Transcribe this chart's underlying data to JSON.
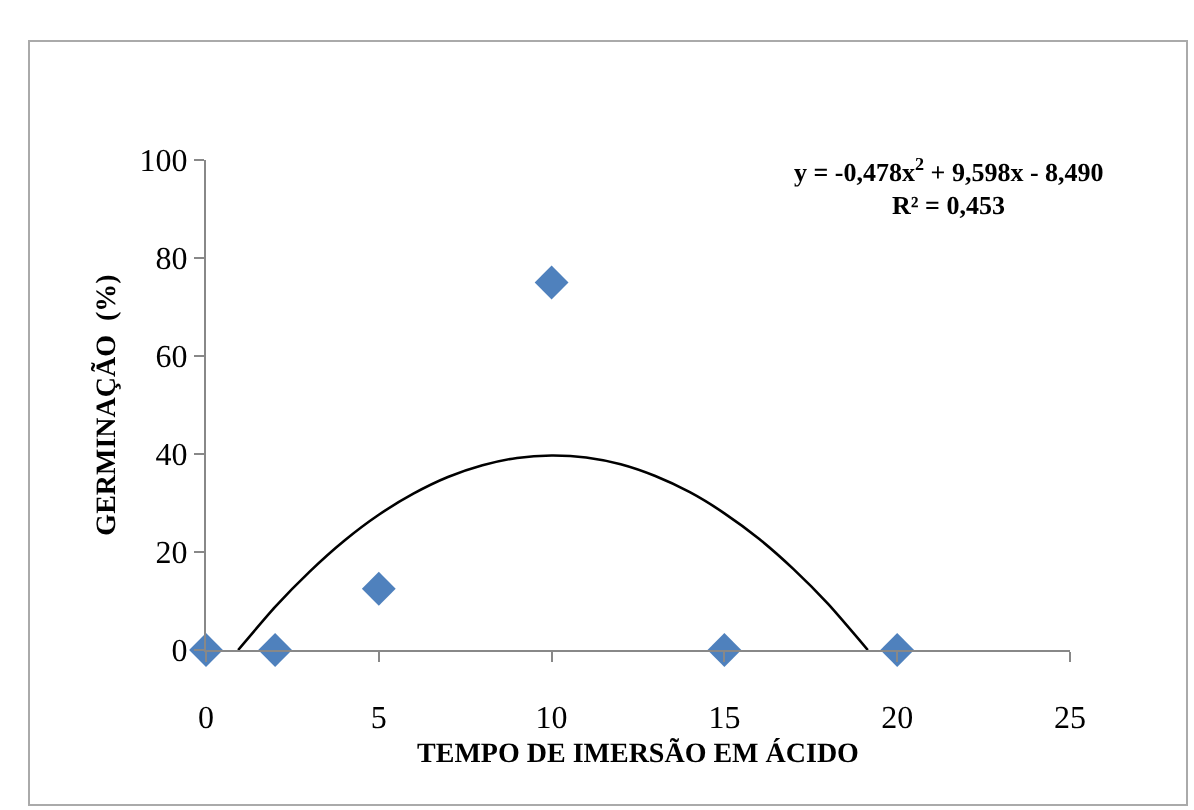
{
  "chart_data": {
    "type": "scatter",
    "xlabel": "TEMPO DE IMERSÃO EM ÁCIDO",
    "ylabel": "GERMINAÇÃO  (%)",
    "x": [
      0,
      2,
      5,
      10,
      15,
      20
    ],
    "values": [
      0,
      0,
      12.5,
      75,
      0,
      0
    ],
    "color": "#4f81bd",
    "marker": "diamond",
    "series": [
      {
        "type": "line",
        "color": "#000000",
        "line_style": "solid",
        "marker": "none",
        "x": [
          0.93,
          2,
          3,
          4,
          5,
          6,
          7,
          8,
          9,
          10,
          11,
          12,
          13,
          14,
          15,
          16,
          17,
          18,
          19.15
        ],
        "values": [
          0,
          8.8,
          16,
          22.3,
          27.6,
          31.9,
          35.3,
          37.7,
          39.2,
          39.7,
          39.3,
          37.9,
          35.5,
          32.2,
          27.9,
          22.7,
          16.5,
          9.4,
          0
        ]
      }
    ],
    "xlim": [
      0,
      25
    ],
    "xticks": [
      0,
      5,
      10,
      15,
      20,
      25
    ],
    "ylim": [
      0,
      100
    ],
    "yticks": [
      0,
      20,
      40,
      60,
      80,
      100
    ],
    "grid": false,
    "annotations": [
      "y = -0,478x$^{2}$ + 9,598x - 8,490",
      "R² = 0,453"
    ]
  }
}
